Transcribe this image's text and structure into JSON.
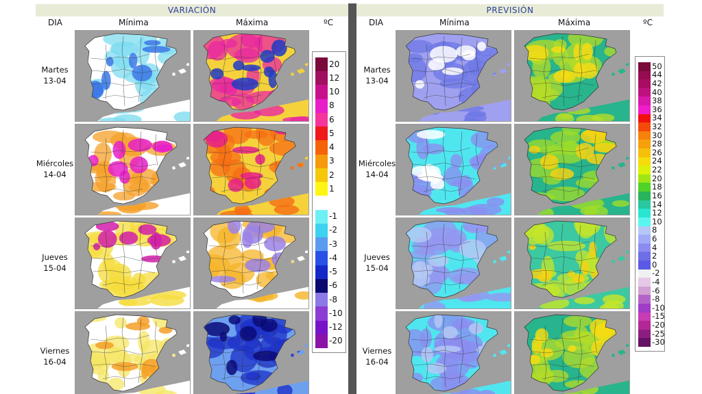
{
  "left": {
    "title": "VARIACIÓN",
    "col_day": "DIA",
    "col_min": "Mínima",
    "col_max": "Máxima",
    "unit": "ºC",
    "scale": [
      {
        "label": "20",
        "color": "#7a0a3a"
      },
      {
        "label": "12",
        "color": "#a01060"
      },
      {
        "label": "10",
        "color": "#c8108c"
      },
      {
        "label": "8",
        "color": "#e81ec8"
      },
      {
        "label": "6",
        "color": "#f5349c"
      },
      {
        "label": "5",
        "color": "#f01818"
      },
      {
        "label": "4",
        "color": "#f5620a"
      },
      {
        "label": "3",
        "color": "#f59a0a"
      },
      {
        "label": "2",
        "color": "#f5c80a"
      },
      {
        "label": "1",
        "color": "#fff514"
      },
      {
        "label": "",
        "color": "#ffffff"
      },
      {
        "label": "-1",
        "color": "#6ef0f5"
      },
      {
        "label": "-2",
        "color": "#3cd2f0"
      },
      {
        "label": "-3",
        "color": "#5a9bf0"
      },
      {
        "label": "-4",
        "color": "#2850e6"
      },
      {
        "label": "-5",
        "color": "#1428c8"
      },
      {
        "label": "-6",
        "color": "#0a0a6e"
      },
      {
        "label": "-8",
        "color": "#8c78e6"
      },
      {
        "label": "-10",
        "color": "#8c3cd2"
      },
      {
        "label": "-12",
        "color": "#7814c8"
      },
      {
        "label": "-20",
        "color": "#8a14a8"
      }
    ]
  },
  "right": {
    "title": "PREVISIÓN",
    "col_day": "DIA",
    "col_min": "Mínima",
    "col_max": "Máxima",
    "unit": "ºC",
    "scale": [
      {
        "label": "50",
        "color": "#7a0a3a"
      },
      {
        "label": "44",
        "color": "#960c50"
      },
      {
        "label": "42",
        "color": "#aa0c64"
      },
      {
        "label": "40",
        "color": "#c01080"
      },
      {
        "label": "38",
        "color": "#d818a8"
      },
      {
        "label": "36",
        "color": "#f01cc8"
      },
      {
        "label": "34",
        "color": "#f01010"
      },
      {
        "label": "32",
        "color": "#f54a0a"
      },
      {
        "label": "30",
        "color": "#f5820a"
      },
      {
        "label": "28",
        "color": "#f5a00a"
      },
      {
        "label": "26",
        "color": "#f5c00a"
      },
      {
        "label": "24",
        "color": "#f5dc0a"
      },
      {
        "label": "22",
        "color": "#dcf00a"
      },
      {
        "label": "20",
        "color": "#a0e614"
      },
      {
        "label": "18",
        "color": "#50d228"
      },
      {
        "label": "16",
        "color": "#28b45a"
      },
      {
        "label": "14",
        "color": "#28c8a0"
      },
      {
        "label": "12",
        "color": "#28e6d2"
      },
      {
        "label": "10",
        "color": "#5af5f0"
      },
      {
        "label": "8",
        "color": "#b4c8f5"
      },
      {
        "label": "6",
        "color": "#a0aaf5"
      },
      {
        "label": "4",
        "color": "#8c8cf0"
      },
      {
        "label": "2",
        "color": "#6e6ee6"
      },
      {
        "label": "0",
        "color": "#5a5ae6"
      },
      {
        "label": "-2",
        "color": "#f0f0f0"
      },
      {
        "label": "-4",
        "color": "#e6c8e6"
      },
      {
        "label": "-6",
        "color": "#d2a0d2"
      },
      {
        "label": "-8",
        "color": "#b464c8"
      },
      {
        "label": "-10",
        "color": "#a03cc8"
      },
      {
        "label": "-15",
        "color": "#c83cb4"
      },
      {
        "label": "-20",
        "color": "#b42896"
      },
      {
        "label": "-25",
        "color": "#8c1e82"
      },
      {
        "label": "-30",
        "color": "#641464"
      }
    ]
  },
  "days": [
    {
      "name": "Martes",
      "date": "13-04"
    },
    {
      "name": "Miércoles",
      "date": "14-04"
    },
    {
      "name": "Jueves",
      "date": "15-04"
    },
    {
      "name": "Viernes",
      "date": "16-04"
    }
  ],
  "maps": {
    "left": [
      {
        "min": [
          "#ffffff",
          "#7fdcf0",
          "#3c78e6"
        ],
        "max": [
          "#f5d23c",
          "#e828a0",
          "#1e3cc8"
        ]
      },
      {
        "min": [
          "#ffffff",
          "#f5a028",
          "#e81ec8"
        ],
        "max": [
          "#f5d23c",
          "#f56e14",
          "#e8208a"
        ]
      },
      {
        "min": [
          "#ffffff",
          "#f5dc3c",
          "#d21eaa"
        ],
        "max": [
          "#ffffff",
          "#f5b428",
          "#9b82e6"
        ]
      },
      {
        "min": [
          "#ffffff",
          "#f5e664",
          "#f5a028"
        ],
        "max": [
          "#6ea0f0",
          "#1e32c8",
          "#0a0a78"
        ]
      }
    ],
    "right": [
      {
        "min": [
          "#a0a0f0",
          "#6e78e6",
          "#ffffff"
        ],
        "max": [
          "#28b48c",
          "#b4dc28",
          "#f5dc14"
        ]
      },
      {
        "min": [
          "#50e6f0",
          "#8c8cf0",
          "#ffffff"
        ],
        "max": [
          "#28b48c",
          "#a0dc28",
          "#f5d214"
        ]
      },
      {
        "min": [
          "#50e6f0",
          "#9696f0",
          "#b4c8f5"
        ],
        "max": [
          "#3cc8a0",
          "#c8e628",
          "#f5d214"
        ]
      },
      {
        "min": [
          "#50e6f0",
          "#8c8cf0",
          "#b4c8f5"
        ],
        "max": [
          "#28b48c",
          "#b4dc28",
          "#f5dc14"
        ]
      }
    ]
  }
}
